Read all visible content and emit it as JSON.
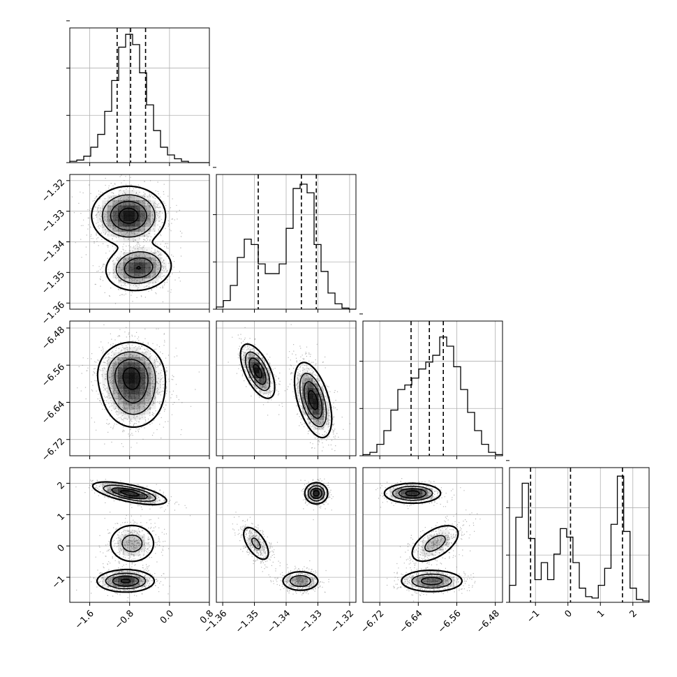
{
  "chart_data": {
    "type": "corner",
    "grid": true,
    "colors": {
      "line": "#000000",
      "grid": "#b0b0b0",
      "points": "#5a5a5a",
      "fill": "#4a4a4a"
    },
    "params": [
      {
        "range": [
          -2.0,
          0.8
        ],
        "ticks": [
          -1.6,
          -0.8,
          0.0,
          0.8
        ],
        "tick_labels": [
          "−1.6",
          "−0.8",
          "0.0",
          "0.8"
        ],
        "quantiles": [
          -1.05,
          -0.78,
          -0.48
        ]
      },
      {
        "range": [
          -1.362,
          -1.318
        ],
        "ticks": [
          -1.36,
          -1.35,
          -1.34,
          -1.33,
          -1.32
        ],
        "tick_labels": [
          "−1.36",
          "−1.35",
          "−1.34",
          "−1.33",
          "−1.32"
        ],
        "quantiles": [
          -1.3488,
          -1.3352,
          -1.3305
        ]
      },
      {
        "range": [
          -6.755,
          -6.465
        ],
        "ticks": [
          -6.72,
          -6.64,
          -6.56,
          -6.48
        ],
        "tick_labels": [
          "−6.72",
          "−6.64",
          "−6.56",
          "−6.48"
        ],
        "quantiles": [
          -6.655,
          -6.617,
          -6.588
        ]
      },
      {
        "range": [
          -1.8,
          2.5
        ],
        "ticks": [
          -1,
          0,
          1,
          2
        ],
        "tick_labels": [
          "−1",
          "0",
          "1",
          "2"
        ],
        "quantiles": [
          -1.15,
          0.08,
          1.68
        ]
      }
    ],
    "histograms": [
      {
        "param": 0,
        "bins": 20,
        "values": [
          1,
          2,
          5,
          12,
          22,
          40,
          64,
          90,
          100,
          92,
          70,
          45,
          25,
          12,
          6,
          3,
          1,
          0,
          0,
          0
        ],
        "ylim": [
          0,
          105
        ]
      },
      {
        "param": 1,
        "bins": 20,
        "values": [
          2,
          8,
          22,
          48,
          65,
          60,
          42,
          33,
          33,
          42,
          75,
          112,
          116,
          108,
          60,
          35,
          15,
          5,
          1,
          0
        ],
        "ylim": [
          0,
          125
        ]
      },
      {
        "param": 2,
        "bins": 20,
        "values": [
          1,
          3,
          10,
          22,
          40,
          58,
          62,
          68,
          76,
          82,
          88,
          104,
          96,
          78,
          58,
          38,
          22,
          10,
          3,
          1
        ],
        "ylim": [
          0,
          118
        ]
      },
      {
        "param": 3,
        "bins": 22,
        "values": [
          12,
          60,
          84,
          45,
          16,
          28,
          16,
          34,
          52,
          46,
          28,
          10,
          4,
          3,
          12,
          24,
          55,
          89,
          50,
          10,
          2,
          1
        ],
        "ylim": [
          0,
          95
        ]
      }
    ],
    "pairs": [
      {
        "x": 0,
        "y": 1,
        "modes": [
          {
            "cx": -0.82,
            "cy": -1.3315,
            "sx": 0.33,
            "sy": 0.0043,
            "rho": 0.0,
            "w": 0.62
          },
          {
            "cx": -0.62,
            "cy": -1.3485,
            "sx": 0.3,
            "sy": 0.0034,
            "rho": 0.1,
            "w": 0.38
          }
        ]
      },
      {
        "x": 0,
        "y": 2,
        "modes": [
          {
            "cx": -0.78,
            "cy": -6.575,
            "sx": 0.3,
            "sy": 0.03,
            "rho": 0.0,
            "w": 0.55
          },
          {
            "cx": -0.72,
            "cy": -6.625,
            "sx": 0.3,
            "sy": 0.035,
            "rho": 0.0,
            "w": 0.45
          }
        ]
      },
      {
        "x": 1,
        "y": 2,
        "modes": [
          {
            "cx": -1.349,
            "cy": -6.573,
            "sx": 0.0024,
            "sy": 0.026,
            "rho": -0.6,
            "w": 0.38
          },
          {
            "cx": -1.3315,
            "cy": -6.635,
            "sx": 0.0026,
            "sy": 0.036,
            "rho": -0.5,
            "w": 0.62
          }
        ]
      },
      {
        "x": 0,
        "y": 3,
        "modes": [
          {
            "cx": -0.8,
            "cy": 1.68,
            "sx": 0.33,
            "sy": 0.16,
            "rho": -0.65,
            "w": 0.37
          },
          {
            "cx": -0.75,
            "cy": 0.08,
            "sx": 0.24,
            "sy": 0.32,
            "rho": 0.0,
            "w": 0.28
          },
          {
            "cx": -0.88,
            "cy": -1.12,
            "sx": 0.26,
            "sy": 0.16,
            "rho": 0.0,
            "w": 0.35
          }
        ]
      },
      {
        "x": 1,
        "y": 3,
        "modes": [
          {
            "cx": -1.3305,
            "cy": 1.68,
            "sx": 0.0016,
            "sy": 0.15,
            "rho": 0.0,
            "w": 0.37
          },
          {
            "cx": -1.3495,
            "cy": 0.08,
            "sx": 0.0023,
            "sy": 0.3,
            "rho": -0.6,
            "w": 0.28
          },
          {
            "cx": -1.3355,
            "cy": -1.12,
            "sx": 0.0028,
            "sy": 0.15,
            "rho": 0.0,
            "w": 0.35
          }
        ]
      },
      {
        "x": 2,
        "y": 3,
        "modes": [
          {
            "cx": -6.652,
            "cy": 1.68,
            "sx": 0.026,
            "sy": 0.14,
            "rho": 0.0,
            "w": 0.37
          },
          {
            "cx": -6.605,
            "cy": 0.08,
            "sx": 0.027,
            "sy": 0.32,
            "rho": 0.55,
            "w": 0.28
          },
          {
            "cx": -6.612,
            "cy": -1.12,
            "sx": 0.03,
            "sy": 0.16,
            "rho": 0.0,
            "w": 0.35
          }
        ]
      }
    ]
  }
}
